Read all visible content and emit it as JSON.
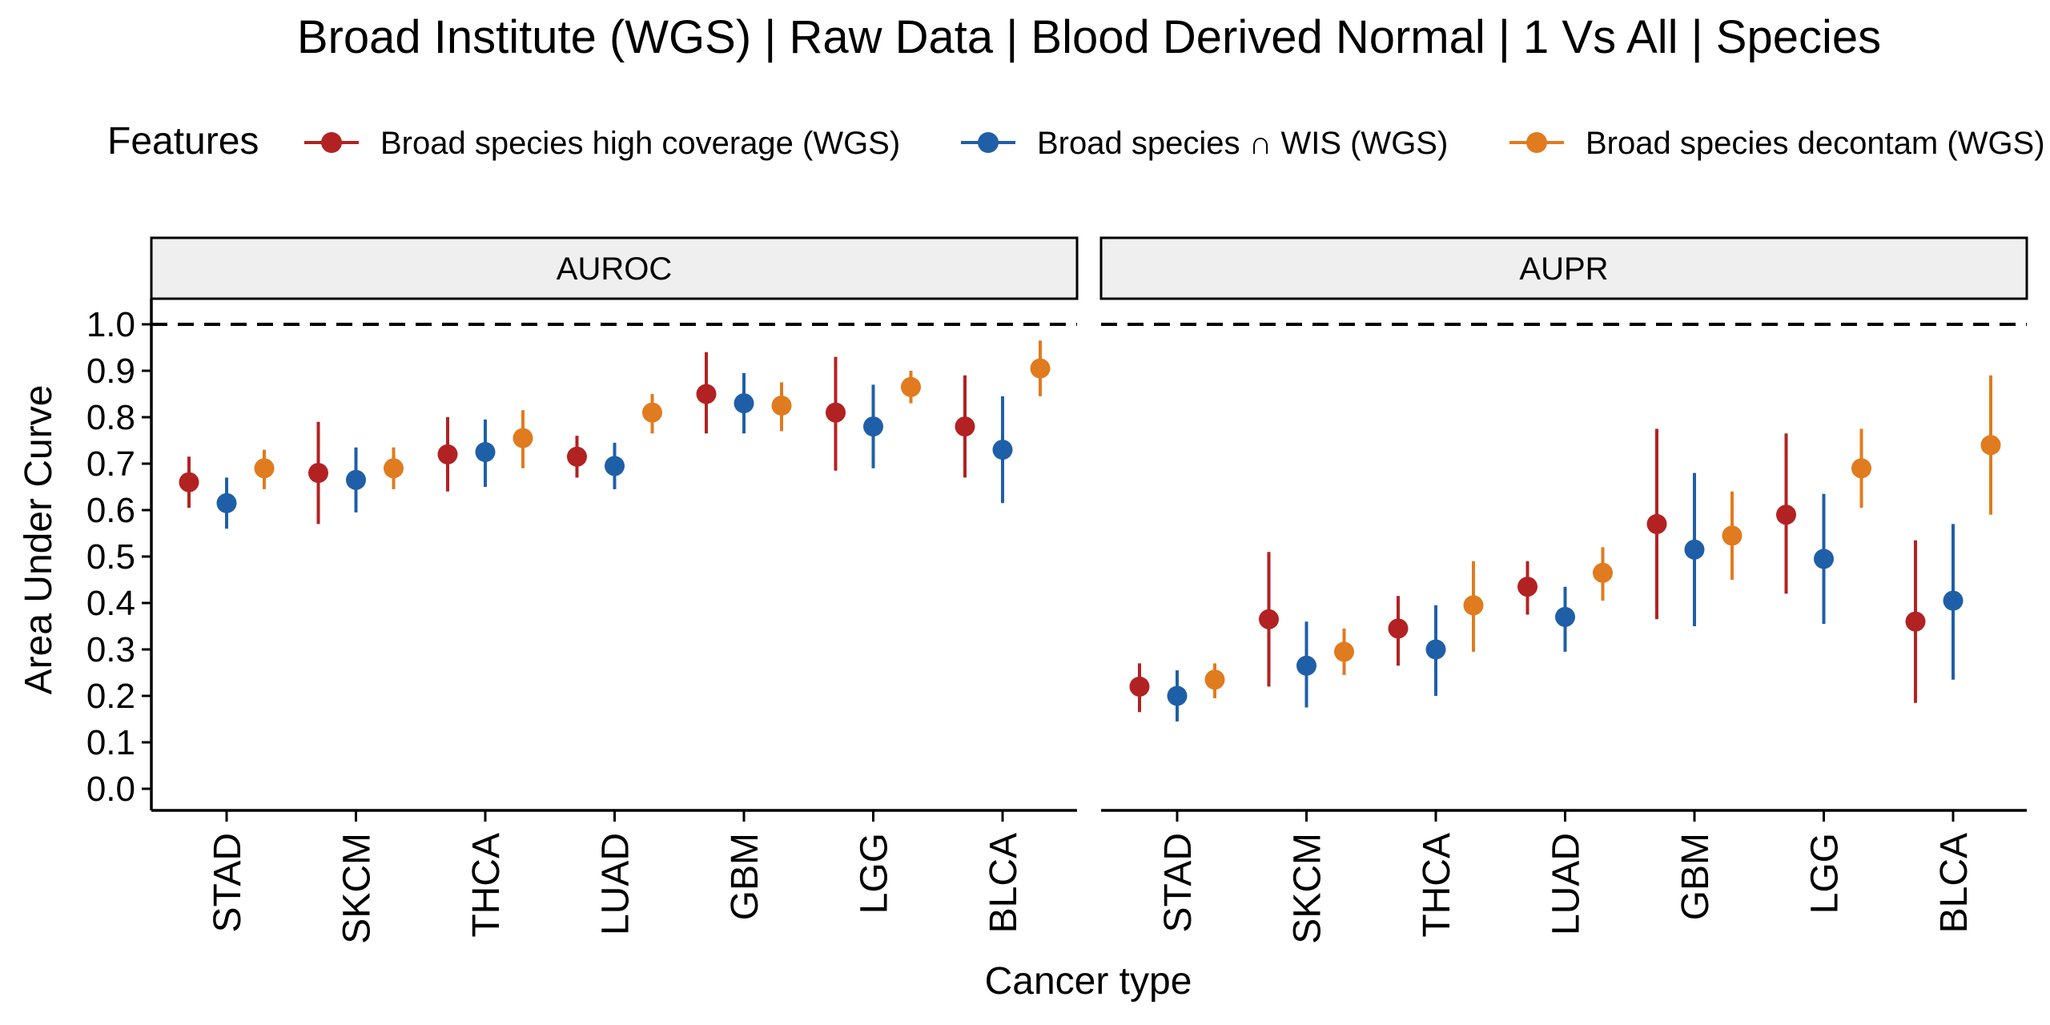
{
  "title": "Broad Institute (WGS) | Raw Data | Blood Derived Normal | 1 Vs All | Species",
  "legend": {
    "title": "Features",
    "entries": [
      {
        "label": "Broad species high coverage (WGS)",
        "color": "#B22222"
      },
      {
        "label": "Broad species ∩ WIS (WGS)",
        "color": "#1F5FA8"
      },
      {
        "label": "Broad species decontam (WGS)",
        "color": "#E07B1F"
      }
    ]
  },
  "ylabel": "Area Under Curve",
  "xlabel": "Cancer type",
  "reference_line": 1.0,
  "chart_data": {
    "type": "scatter",
    "title": "Broad Institute (WGS) | Raw Data | Blood Derived Normal | 1 Vs All | Species",
    "xlabel": "Cancer type",
    "ylabel": "Area Under Curve",
    "ylim": [
      0,
      1
    ],
    "yticks": [
      "0.0",
      "0.1",
      "0.2",
      "0.3",
      "0.4",
      "0.5",
      "0.6",
      "0.7",
      "0.8",
      "0.9",
      "1.0"
    ],
    "legend_position": "top",
    "categories": [
      "STAD",
      "SKCM",
      "THCA",
      "LUAD",
      "GBM",
      "LGG",
      "BLCA"
    ],
    "facets": [
      {
        "name": "AUROC",
        "series": [
          {
            "name": "Broad species high coverage (WGS)",
            "values": [
              0.66,
              0.68,
              0.72,
              0.715,
              0.85,
              0.81,
              0.78
            ],
            "lower": [
              0.605,
              0.57,
              0.64,
              0.67,
              0.765,
              0.685,
              0.67
            ],
            "upper": [
              0.715,
              0.79,
              0.8,
              0.76,
              0.94,
              0.93,
              0.89
            ]
          },
          {
            "name": "Broad species ∩ WIS (WGS)",
            "values": [
              0.615,
              0.665,
              0.725,
              0.695,
              0.83,
              0.78,
              0.73
            ],
            "lower": [
              0.56,
              0.595,
              0.65,
              0.645,
              0.765,
              0.69,
              0.615
            ],
            "upper": [
              0.67,
              0.735,
              0.795,
              0.745,
              0.895,
              0.87,
              0.845
            ]
          },
          {
            "name": "Broad species decontam (WGS)",
            "values": [
              0.69,
              0.69,
              0.755,
              0.81,
              0.825,
              0.865,
              0.905
            ],
            "lower": [
              0.645,
              0.645,
              0.69,
              0.765,
              0.77,
              0.83,
              0.845
            ],
            "upper": [
              0.73,
              0.735,
              0.815,
              0.85,
              0.875,
              0.9,
              0.965
            ]
          }
        ]
      },
      {
        "name": "AUPR",
        "series": [
          {
            "name": "Broad species high coverage (WGS)",
            "values": [
              0.22,
              0.365,
              0.345,
              0.435,
              0.57,
              0.59,
              0.36
            ],
            "lower": [
              0.165,
              0.22,
              0.265,
              0.375,
              0.365,
              0.42,
              0.185
            ],
            "upper": [
              0.27,
              0.51,
              0.415,
              0.49,
              0.775,
              0.765,
              0.535
            ]
          },
          {
            "name": "Broad species ∩ WIS (WGS)",
            "values": [
              0.2,
              0.265,
              0.3,
              0.37,
              0.515,
              0.495,
              0.405
            ],
            "lower": [
              0.145,
              0.175,
              0.2,
              0.295,
              0.35,
              0.355,
              0.235
            ],
            "upper": [
              0.255,
              0.36,
              0.395,
              0.435,
              0.68,
              0.635,
              0.57
            ]
          },
          {
            "name": "Broad species decontam (WGS)",
            "values": [
              0.235,
              0.295,
              0.395,
              0.465,
              0.545,
              0.69,
              0.74
            ],
            "lower": [
              0.195,
              0.245,
              0.295,
              0.405,
              0.45,
              0.605,
              0.59
            ],
            "upper": [
              0.27,
              0.345,
              0.49,
              0.52,
              0.64,
              0.775,
              0.89
            ]
          }
        ]
      }
    ]
  }
}
